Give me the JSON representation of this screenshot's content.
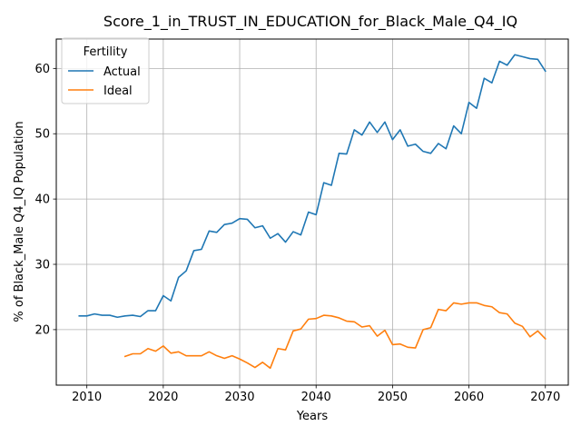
{
  "chart_data": {
    "type": "line",
    "title": "Score_1_in_TRUST_IN_EDUCATION_for_Black_Male_Q4_IQ",
    "xlabel": "Years",
    "ylabel": "% of Black_Male Q4_IQ Population",
    "xlim": [
      2006,
      2073
    ],
    "ylim": [
      11.5,
      64.5
    ],
    "xticks": [
      2010,
      2020,
      2030,
      2040,
      2050,
      2060,
      2070
    ],
    "yticks": [
      20,
      30,
      40,
      50,
      60
    ],
    "grid": true,
    "legend": {
      "title": "Fertility",
      "position": "top-left"
    },
    "series": [
      {
        "name": "Actual",
        "color": "#1f77b4",
        "x": [
          2009,
          2010,
          2011,
          2012,
          2013,
          2014,
          2015,
          2016,
          2017,
          2018,
          2019,
          2020,
          2021,
          2022,
          2023,
          2024,
          2025,
          2026,
          2027,
          2028,
          2029,
          2030,
          2031,
          2032,
          2033,
          2034,
          2035,
          2036,
          2037,
          2038,
          2039,
          2040,
          2041,
          2042,
          2043,
          2044,
          2045,
          2046,
          2047,
          2048,
          2049,
          2050,
          2051,
          2052,
          2053,
          2054,
          2055,
          2056,
          2057,
          2058,
          2059,
          2060,
          2061,
          2062,
          2063,
          2064,
          2065,
          2066,
          2067,
          2068,
          2069,
          2070
        ],
        "y": [
          22.1,
          22.1,
          22.4,
          22.2,
          22.2,
          21.9,
          22.1,
          22.2,
          22.0,
          22.9,
          22.9,
          25.2,
          24.4,
          28.0,
          29.0,
          32.1,
          32.3,
          35.1,
          34.9,
          36.1,
          36.3,
          37.0,
          36.9,
          35.6,
          35.9,
          34.0,
          34.7,
          33.4,
          35.0,
          34.5,
          38.0,
          37.6,
          42.5,
          42.1,
          47.0,
          46.9,
          50.6,
          49.8,
          51.8,
          50.2,
          51.8,
          49.1,
          50.6,
          48.1,
          48.4,
          47.3,
          47.0,
          48.5,
          47.7,
          51.2,
          50.0,
          54.8,
          53.9,
          58.5,
          57.8,
          61.1,
          60.5,
          62.1,
          61.8,
          61.5,
          61.4,
          59.6
        ]
      },
      {
        "name": "Ideal",
        "color": "#ff7f0e",
        "x": [
          2015,
          2016,
          2017,
          2018,
          2019,
          2020,
          2021,
          2022,
          2023,
          2024,
          2025,
          2026,
          2027,
          2028,
          2029,
          2030,
          2031,
          2032,
          2033,
          2034,
          2035,
          2036,
          2037,
          2038,
          2039,
          2040,
          2041,
          2042,
          2043,
          2044,
          2045,
          2046,
          2047,
          2048,
          2049,
          2050,
          2051,
          2052,
          2053,
          2054,
          2055,
          2056,
          2057,
          2058,
          2059,
          2060,
          2061,
          2062,
          2063,
          2064,
          2065,
          2066,
          2067,
          2068,
          2069,
          2070
        ],
        "y": [
          15.9,
          16.3,
          16.3,
          17.1,
          16.7,
          17.5,
          16.4,
          16.6,
          16.0,
          16.0,
          16.0,
          16.6,
          16.0,
          15.6,
          16.0,
          15.5,
          14.9,
          14.2,
          15.0,
          14.1,
          17.1,
          16.9,
          19.8,
          20.1,
          21.6,
          21.7,
          22.2,
          22.1,
          21.8,
          21.3,
          21.2,
          20.4,
          20.6,
          19.0,
          19.9,
          17.7,
          17.8,
          17.3,
          17.2,
          20.0,
          20.3,
          23.1,
          22.9,
          24.1,
          23.9,
          24.1,
          24.1,
          23.7,
          23.5,
          22.6,
          22.4,
          21.0,
          20.5,
          18.9,
          19.8,
          18.6
        ]
      }
    ]
  }
}
